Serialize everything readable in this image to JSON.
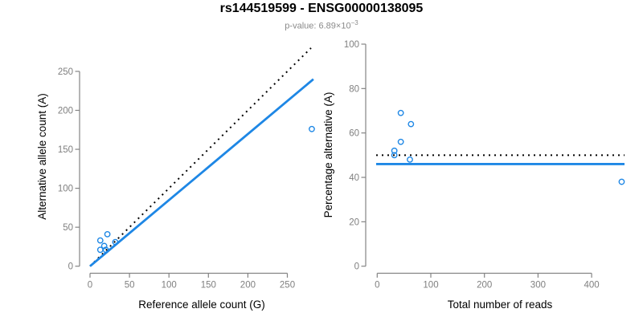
{
  "header": {
    "title": "rs144519599 - ENSG00000138095",
    "subtitle_prefix": "p-value: 6.89×10",
    "subtitle_exponent": "−3"
  },
  "colors": {
    "accent_blue": "#1E87E5",
    "dotted_black": "#000000",
    "axis_gray": "#848484",
    "tick_label_gray": "#7f7f7f",
    "axis_title_black": "#000000"
  },
  "chart_data": [
    {
      "type": "scatter",
      "name": "allele-counts-plot",
      "xlabel": "Reference allele count (G)",
      "ylabel": "Alternative allele count (A)",
      "xlim": [
        0,
        285
      ],
      "ylim": [
        0,
        285
      ],
      "xticks": [
        0,
        50,
        100,
        150,
        200,
        250
      ],
      "yticks": [
        0,
        50,
        100,
        150,
        200,
        250
      ],
      "grid": false,
      "legend": "none",
      "points": [
        [
          13,
          33
        ],
        [
          22,
          41
        ],
        [
          18,
          26
        ],
        [
          13,
          21
        ],
        [
          20,
          21
        ],
        [
          32,
          31
        ],
        [
          281,
          176
        ]
      ],
      "lines": [
        {
          "name": "identity-line-y-equals-x",
          "style": "dotted",
          "color_key": "dotted_black",
          "from": [
            0,
            0
          ],
          "to": [
            280,
            280
          ]
        },
        {
          "name": "fit-line-slope-0.85",
          "style": "solid",
          "color_key": "accent_blue",
          "from": [
            0,
            0
          ],
          "to": [
            283,
            240
          ]
        }
      ]
    },
    {
      "type": "scatter",
      "name": "percentage-alternative-plot",
      "xlabel": "Total number of reads",
      "ylabel": "Percentage alternative (A)",
      "xlim": [
        0,
        465
      ],
      "ylim": [
        0,
        100
      ],
      "xticks": [
        0,
        100,
        200,
        300,
        400
      ],
      "yticks": [
        0,
        20,
        40,
        60,
        80,
        100
      ],
      "grid": false,
      "legend": "none",
      "points": [
        [
          44,
          69
        ],
        [
          63,
          64
        ],
        [
          44,
          56
        ],
        [
          32,
          52
        ],
        [
          32,
          50
        ],
        [
          61,
          48
        ],
        [
          456,
          38
        ]
      ],
      "lines": [
        {
          "name": "expected-50-percent-line",
          "style": "dotted",
          "color_key": "dotted_black",
          "y": 50
        },
        {
          "name": "fit-mean-46-percent-line",
          "style": "solid",
          "color_key": "accent_blue",
          "y": 46
        }
      ]
    }
  ]
}
